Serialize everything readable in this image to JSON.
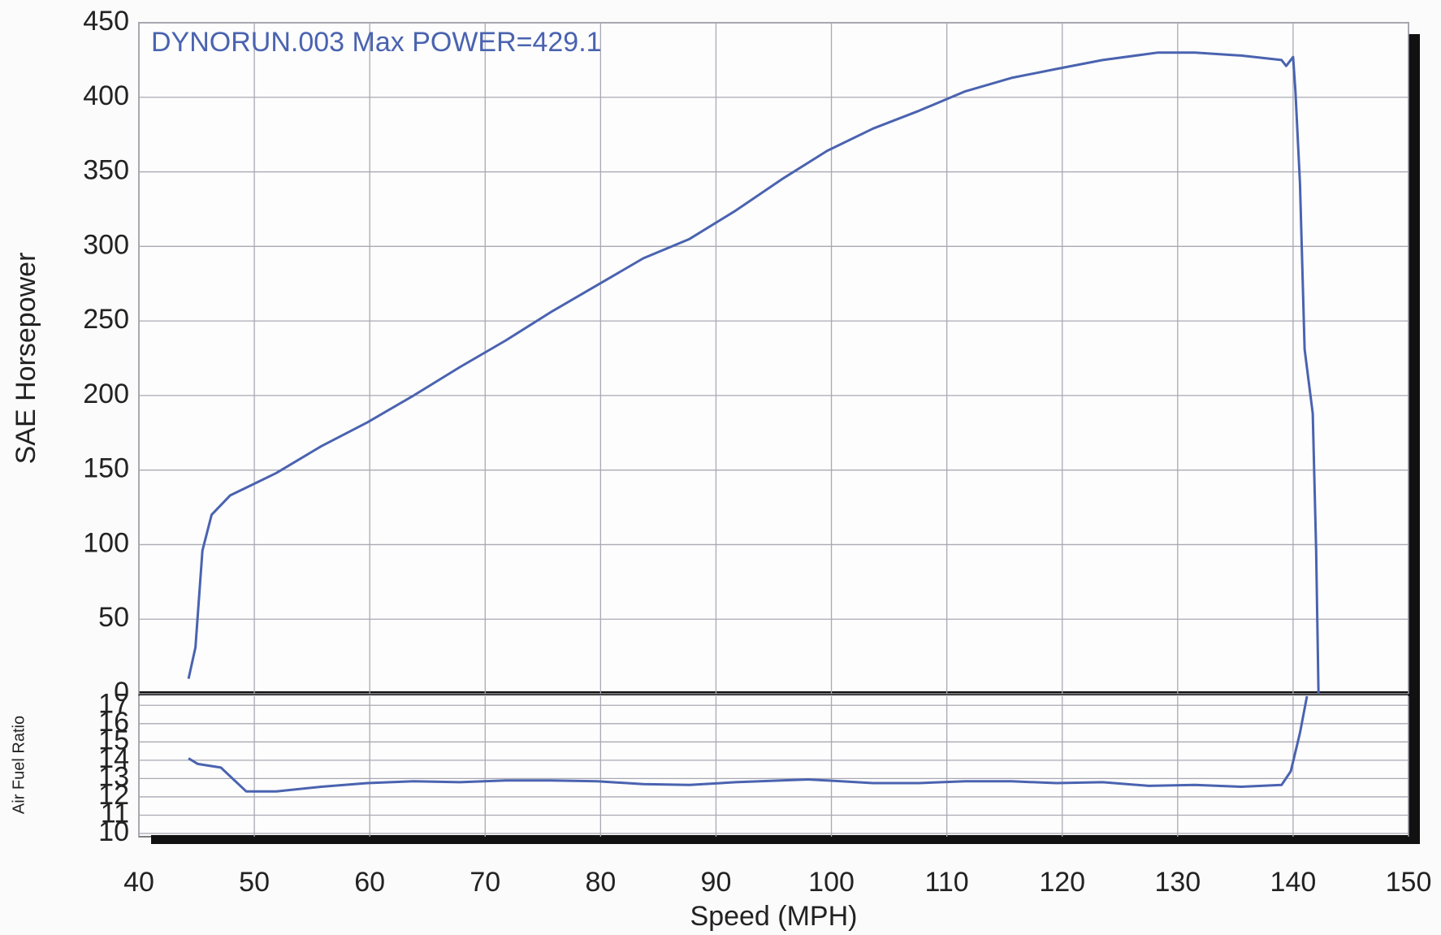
{
  "chart_data": [
    {
      "type": "line",
      "ylabel": "SAE Horsepower",
      "annotation": "DYNORUN.003  Max POWER=429.1",
      "xlim": [
        40,
        150
      ],
      "xticks": [
        40,
        50,
        60,
        70,
        80,
        90,
        100,
        110,
        120,
        130,
        140,
        150
      ],
      "ylim": [
        0,
        450
      ],
      "yticks": [
        0,
        50,
        100,
        150,
        200,
        250,
        300,
        350,
        400,
        450
      ],
      "grid": true,
      "color": "#4a63b0",
      "x": [
        44.3,
        44.9,
        45.5,
        46.3,
        47.9,
        50.3,
        51.9,
        55.8,
        59.8,
        63.8,
        67.8,
        71.8,
        75.7,
        79.7,
        83.7,
        87.7,
        91.7,
        95.7,
        99.6,
        103.6,
        107.6,
        111.6,
        115.6,
        119.5,
        123.5,
        128.3,
        131.5,
        135.5,
        139.0,
        139.4,
        140.0,
        140.2,
        140.6,
        141.0,
        141.7,
        142.0,
        142.2
      ],
      "values": [
        10,
        31,
        96,
        120,
        133,
        142,
        148,
        166,
        182,
        200,
        219,
        237,
        256,
        274,
        292,
        305,
        324,
        345,
        364,
        379,
        391,
        404,
        413,
        419,
        425,
        430,
        430,
        428,
        425,
        421,
        427,
        404,
        342,
        231,
        188,
        96,
        0
      ]
    },
    {
      "type": "line",
      "ylabel": "Air Fuel Ratio",
      "xlabel": "Speed (MPH)",
      "xlim": [
        40,
        150
      ],
      "xticks": [
        40,
        50,
        60,
        70,
        80,
        90,
        100,
        110,
        120,
        130,
        140,
        150
      ],
      "ylim": [
        10,
        17.5
      ],
      "yticks": [
        10,
        11,
        12,
        13,
        14,
        15,
        16,
        17
      ],
      "grid": true,
      "color": "#4a63b0",
      "x": [
        44.3,
        45.1,
        47.1,
        49.3,
        51.9,
        55.8,
        59.8,
        63.8,
        67.8,
        71.8,
        75.7,
        79.7,
        83.7,
        87.7,
        91.7,
        98.0,
        103.6,
        107.6,
        111.6,
        115.6,
        119.5,
        123.5,
        127.5,
        131.5,
        135.5,
        139.0,
        139.8,
        140.6,
        141.2
      ],
      "values": [
        14.1,
        13.8,
        13.6,
        12.3,
        12.3,
        12.55,
        12.75,
        12.85,
        12.8,
        12.9,
        12.9,
        12.85,
        12.7,
        12.65,
        12.8,
        12.95,
        12.75,
        12.75,
        12.85,
        12.85,
        12.75,
        12.8,
        12.6,
        12.65,
        12.55,
        12.65,
        13.4,
        15.5,
        17.5
      ]
    }
  ]
}
